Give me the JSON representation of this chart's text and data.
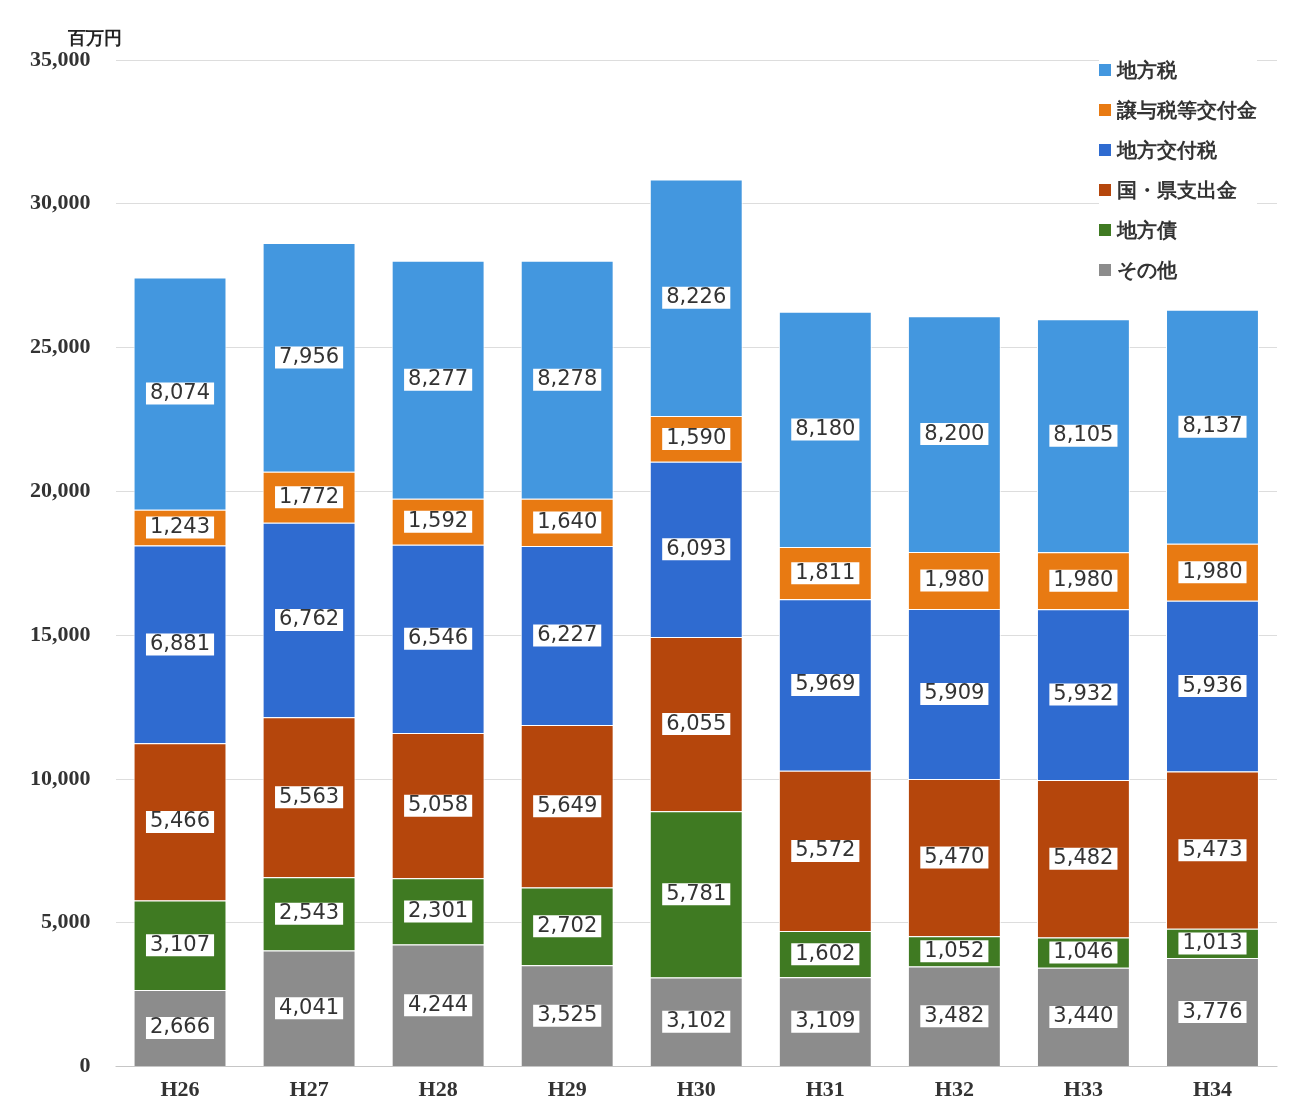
{
  "chart_data": {
    "type": "bar",
    "stacked": true,
    "ylabel": "百万円",
    "categories": [
      "H26",
      "H27",
      "H28",
      "H29",
      "H30",
      "H31",
      "H32",
      "H33",
      "H34"
    ],
    "series": [
      {
        "name": "その他",
        "color": "#8c8c8c",
        "values": [
          2666,
          4041,
          4244,
          3525,
          3102,
          3109,
          3482,
          3440,
          3776
        ],
        "value_labels": [
          "2,666",
          "4,041",
          "4,244",
          "3,525",
          "3,102",
          "3,109",
          "3,482",
          "3,440",
          "3,776"
        ]
      },
      {
        "name": "地方債",
        "color": "#3f7a22",
        "values": [
          3107,
          2543,
          2301,
          2702,
          5781,
          1602,
          1052,
          1046,
          1013
        ],
        "value_labels": [
          "3,107",
          "2,543",
          "2,301",
          "2,702",
          "5,781",
          "1,602",
          "1,052",
          "1,046",
          "1,013"
        ]
      },
      {
        "name": "国・県支出金",
        "color": "#b5460c",
        "values": [
          5466,
          5563,
          5058,
          5649,
          6055,
          5572,
          5470,
          5482,
          5473
        ],
        "value_labels": [
          "5,466",
          "5,563",
          "5,058",
          "5,649",
          "6,055",
          "5,572",
          "5,470",
          "5,482",
          "5,473"
        ]
      },
      {
        "name": "地方交付税",
        "color": "#2f6bd0",
        "values": [
          6881,
          6762,
          6546,
          6227,
          6093,
          5969,
          5909,
          5932,
          5936
        ],
        "value_labels": [
          "6,881",
          "6,762",
          "6,546",
          "6,227",
          "6,093",
          "5,969",
          "5,909",
          "5,932",
          "5,936"
        ]
      },
      {
        "name": "譲与税等交付金",
        "color": "#e87a12",
        "values": [
          1243,
          1772,
          1592,
          1640,
          1590,
          1811,
          1980,
          1980,
          1980
        ],
        "value_labels": [
          "1,243",
          "1,772",
          "1,592",
          "1,640",
          "1,590",
          "1,811",
          "1,980",
          "1,980",
          "1,980"
        ]
      },
      {
        "name": "地方税",
        "color": "#4397df",
        "values": [
          8074,
          7956,
          8277,
          8278,
          8226,
          8180,
          8200,
          8105,
          8137
        ],
        "value_labels": [
          "8,074",
          "7,956",
          "8,277",
          "8,278",
          "8,226",
          "8,180",
          "8,200",
          "8,105",
          "8,137"
        ]
      }
    ],
    "ylim": [
      0,
      35000
    ],
    "yticks": [
      0,
      {
        "value": 5000,
        "label": "5,000"
      },
      {
        "value": 10000,
        "label": "10,000"
      },
      {
        "value": 15000,
        "label": "15,000"
      },
      {
        "value": 20000,
        "label": "20,000"
      },
      {
        "value": 25000,
        "label": "25,000"
      },
      {
        "value": 30000,
        "label": "30,000"
      },
      {
        "value": 35000,
        "label": "35,000"
      }
    ],
    "grid": "y",
    "legend": "top right"
  }
}
